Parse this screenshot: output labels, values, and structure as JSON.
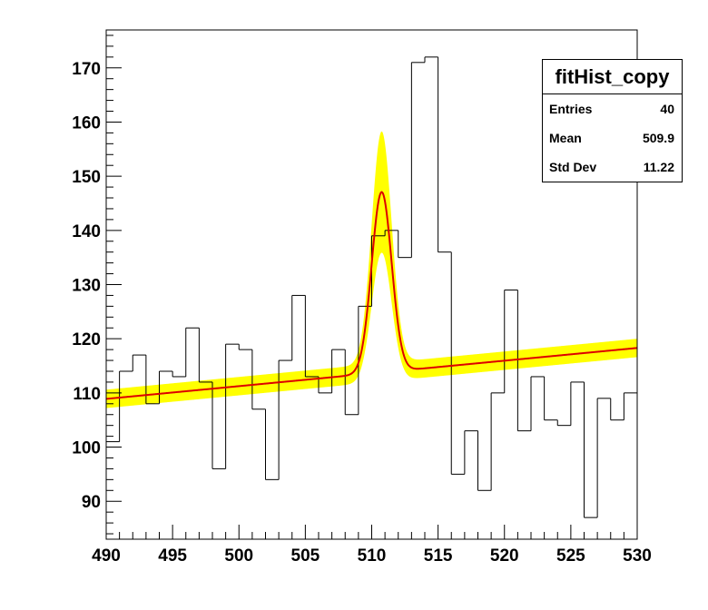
{
  "chart_data": {
    "type": "bar",
    "title": "",
    "xlabel": "",
    "ylabel": "",
    "xlim": [
      490,
      530
    ],
    "ylim": [
      83,
      177
    ],
    "x_ticks": [
      490,
      495,
      500,
      505,
      510,
      515,
      520,
      525,
      530
    ],
    "y_ticks": [
      90,
      100,
      110,
      120,
      130,
      140,
      150,
      160,
      170
    ],
    "histogram": {
      "bin_width": 1,
      "bin_edges_start": 490,
      "values": [
        101,
        114,
        117,
        108,
        114,
        113,
        122,
        112,
        96,
        119,
        118,
        107,
        94,
        116,
        128,
        113,
        110,
        118,
        106,
        126,
        139,
        140,
        135,
        171,
        172,
        136,
        95,
        103,
        92,
        110,
        129,
        103,
        113,
        105,
        104,
        112,
        87,
        109,
        105,
        110
      ]
    },
    "fit": {
      "name": "fit",
      "color": "#dd0000",
      "band_color": "#ffff00",
      "background": {
        "intercept_at_490": 108.9,
        "slope": 0.235
      },
      "peak": {
        "mean": 510.75,
        "sigma": 0.75,
        "amplitude": 33.3
      },
      "band_halfwidth": {
        "base": 1.7,
        "peak_extra": 9.5
      }
    },
    "stats": {
      "title": "fitHist_copy",
      "rows": [
        {
          "label": "Entries",
          "value": "40"
        },
        {
          "label": "Mean",
          "value": "509.9"
        },
        {
          "label": "Std Dev",
          "value": "11.22"
        }
      ]
    },
    "grid": false,
    "legend": "top-right"
  }
}
